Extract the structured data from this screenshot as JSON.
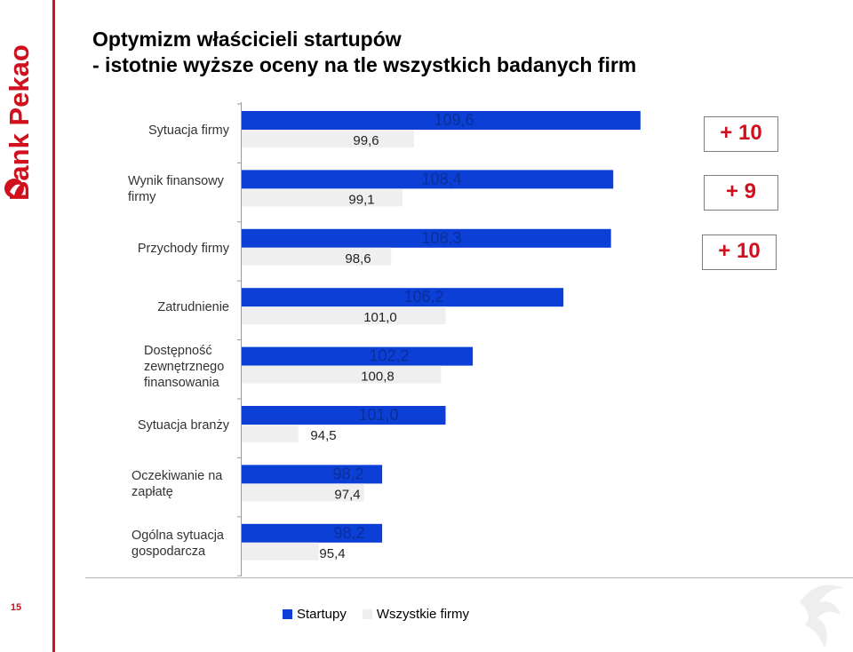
{
  "slide": {
    "title_line1": "Optymizm właścicieli startupów",
    "title_line2": "- istotnie wyższe oceny na tle wszystkich badanych firm",
    "page_number": "15",
    "logo_text": "Bank Pekao"
  },
  "colors": {
    "startupy": "#0b3fd6",
    "wszystkie": "#efefef",
    "accent": "#d1101e"
  },
  "chart_data": {
    "type": "bar",
    "orientation": "horizontal",
    "categories": [
      [
        "Sytuacja firmy"
      ],
      [
        "Wynik finansowy",
        "firmy"
      ],
      [
        "Przychody firmy"
      ],
      [
        "Zatrudnienie"
      ],
      [
        "Dostępność",
        "zewnętrznego",
        "finansowania"
      ],
      [
        "Sytuacja branży"
      ],
      [
        "Oczekiwanie na",
        "zapłatę"
      ],
      [
        "Ogólna sytuacja",
        "gospodarcza"
      ]
    ],
    "series": [
      {
        "name": "Startupy",
        "values": [
          109.6,
          108.4,
          108.3,
          106.2,
          102.2,
          101.0,
          98.2,
          98.2
        ],
        "labels": [
          "109,6",
          "108,4",
          "108,3",
          "106,2",
          "102,2",
          "101,0",
          "98,2",
          "98,2"
        ]
      },
      {
        "name": "Wszystkie firmy",
        "values": [
          99.6,
          99.1,
          98.6,
          101.0,
          100.8,
          94.5,
          97.4,
          95.4
        ],
        "labels": [
          "99,6",
          "99,1",
          "98,6",
          "101,0",
          "100,8",
          "94,5",
          "97,4",
          "95,4"
        ]
      }
    ],
    "differences": [
      "+ 10",
      "+ 9",
      "+ 10"
    ],
    "legend": [
      "Startupy",
      "Wszystkie firmy"
    ],
    "legend_position": "bottom",
    "grid": false
  }
}
